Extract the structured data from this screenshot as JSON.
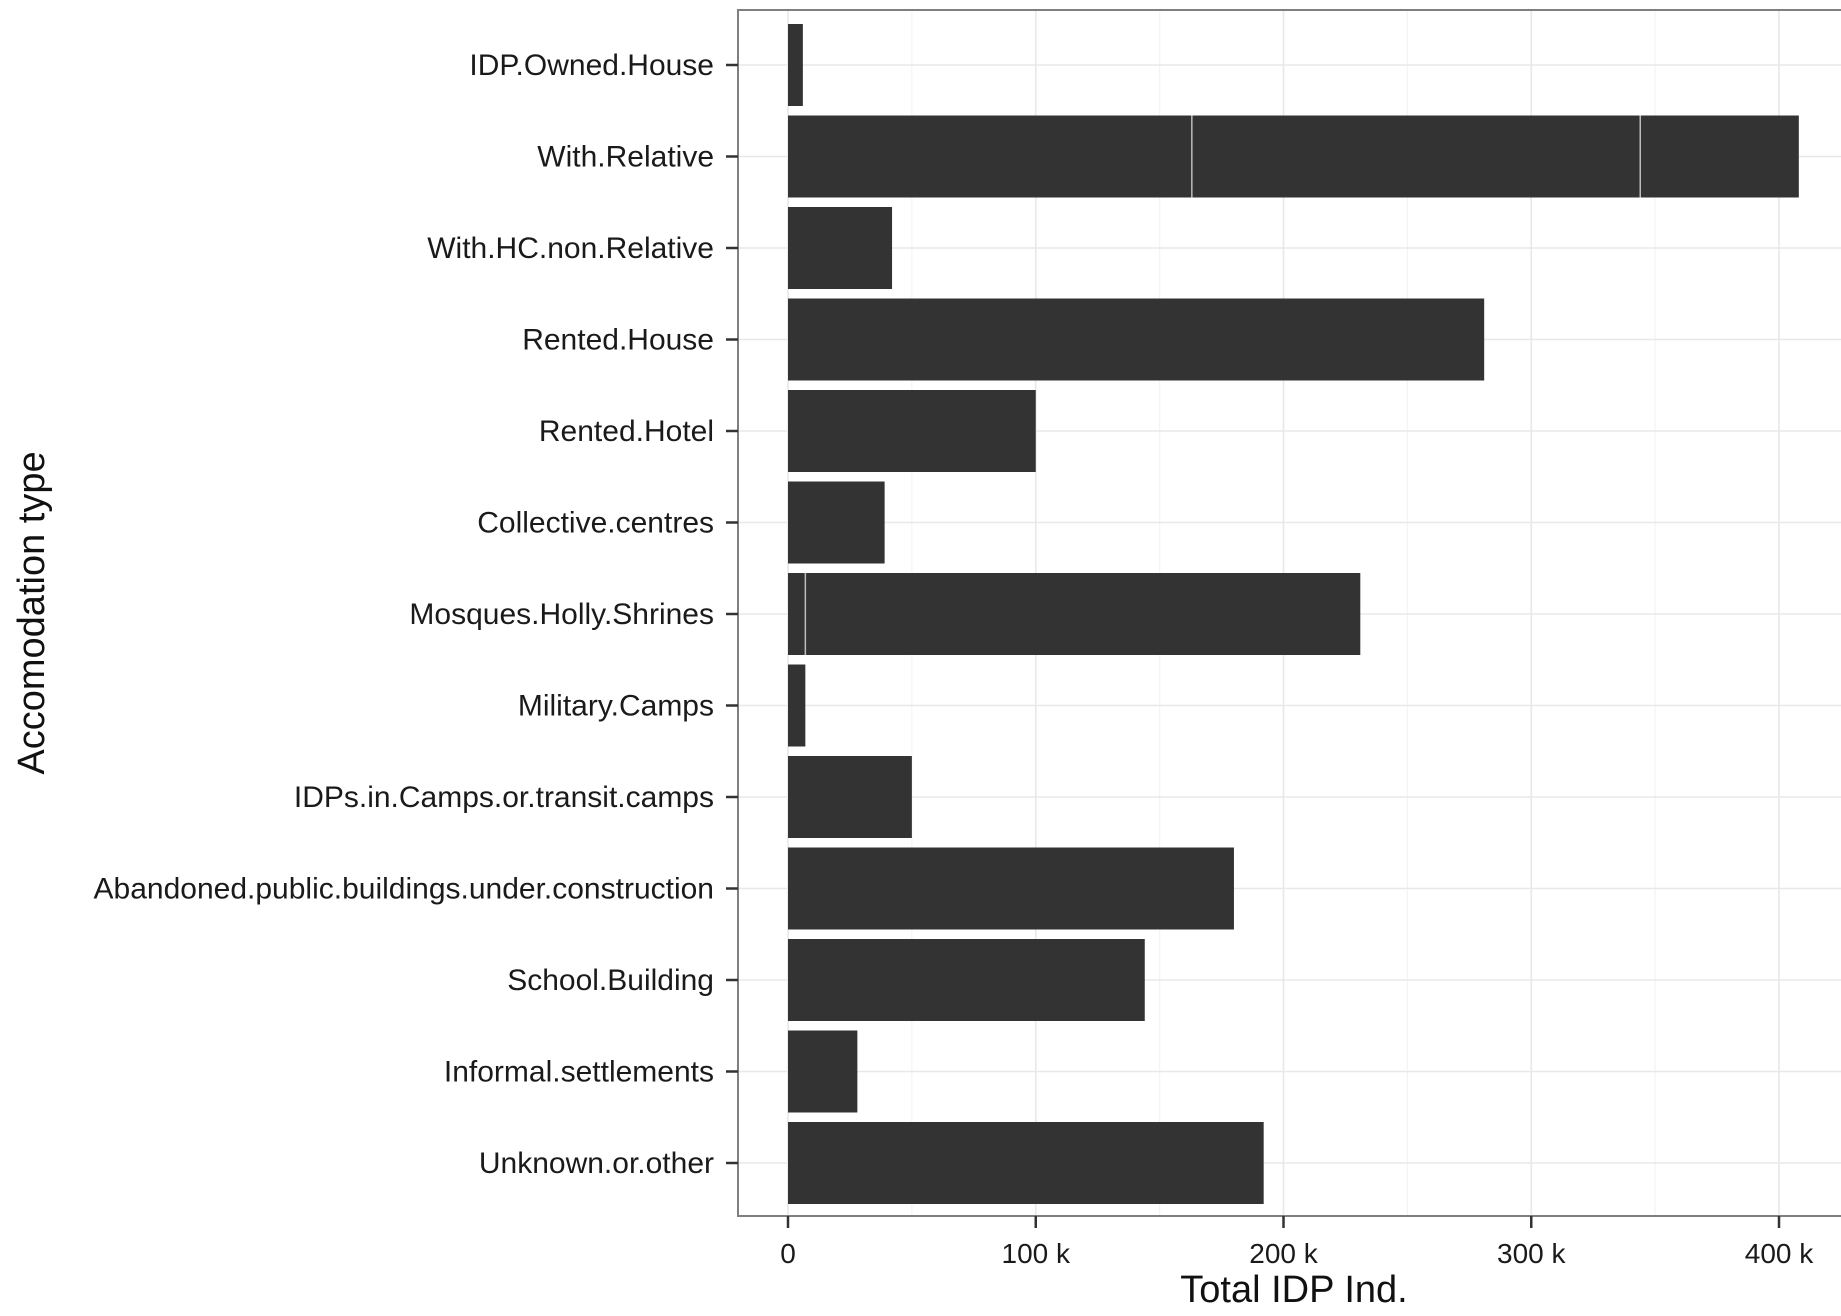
{
  "colors": {
    "bar_fill": "#333333",
    "segment_separator": "#bdbdbd",
    "grid_major": "#e8e8e8",
    "grid_minor": "#f4f4f4",
    "panel_border": "#7f7f7f",
    "tick": "#333333"
  },
  "chart_data": {
    "type": "bar",
    "orientation": "horizontal",
    "title": "",
    "xlabel": "Total IDP Ind.",
    "ylabel": "Accomodation type",
    "xlim": [
      -20000,
      425000
    ],
    "x_ticks": [
      0,
      100000,
      200000,
      300000,
      400000
    ],
    "x_tick_labels": [
      "0",
      "100 k",
      "200 k",
      "300 k",
      "400 k"
    ],
    "grid": "on",
    "legend": "none",
    "categories": [
      "IDP.Owned.House",
      "With.Relative",
      "With.HC.non.Relative",
      "Rented.House",
      "Rented.Hotel",
      "Collective.centres",
      "Mosques.Holly.Shrines",
      "Military.Camps",
      "IDPs.in.Camps.or.transit.camps",
      "Abandoned.public.buildings.under.construction",
      "School.Building",
      "Informal.settlements",
      "Unknown.or.other"
    ],
    "values": [
      6000,
      408000,
      42000,
      281000,
      100000,
      39000,
      231000,
      7000,
      50000,
      180000,
      144000,
      28000,
      192000
    ],
    "segments": [
      [
        6000
      ],
      [
        163000,
        181000,
        64000
      ],
      [
        42000
      ],
      [
        281000
      ],
      [
        100000
      ],
      [
        39000
      ],
      [
        7000,
        224000
      ],
      [
        7000
      ],
      [
        50000
      ],
      [
        180000
      ],
      [
        144000
      ],
      [
        28000
      ],
      [
        192000
      ]
    ]
  }
}
